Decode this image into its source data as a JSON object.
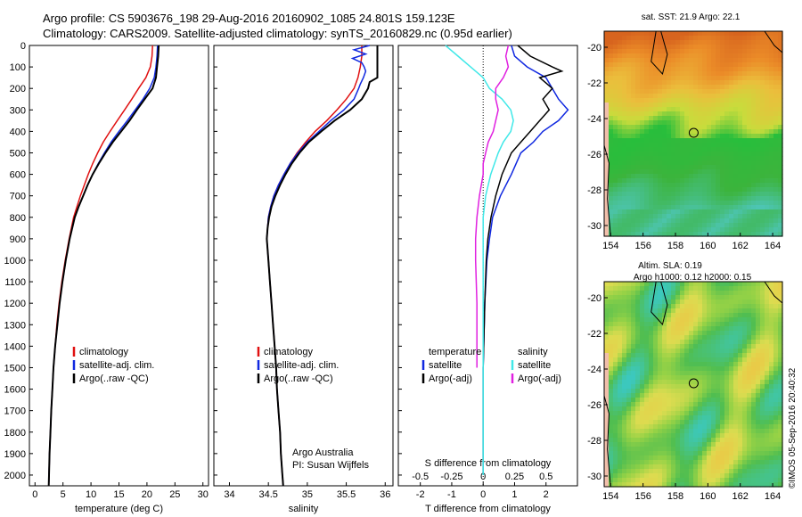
{
  "header": {
    "line1": "Argo profile: CS 5903676_198 29-Aug-2016 20160902_1085 24.801S 159.123E",
    "line2": "Climatology: CARS2009. Satellite-adjusted climatology: synTS_20160829.nc (0.95d earlier)"
  },
  "side_label": "©IMOS 05-Sep-2016 20:40:32",
  "colors": {
    "clim": "#e01010",
    "sat": "#1028e0",
    "argo": "#000000",
    "sal_sat": "#40e8e8",
    "sal_argo": "#e020e0"
  },
  "chart_data": [
    {
      "id": "temperature",
      "type": "line",
      "xlabel": "temperature (deg C)",
      "xlim": [
        -1,
        31
      ],
      "ylim": [
        2050,
        0
      ],
      "xticks": [
        "0",
        "5",
        "10",
        "15",
        "20",
        "25",
        "30"
      ],
      "yticks": [
        "0",
        "100",
        "200",
        "300",
        "400",
        "500",
        "600",
        "700",
        "800",
        "900",
        "1000",
        "1100",
        "1200",
        "1300",
        "1400",
        "1500",
        "1600",
        "1700",
        "1800",
        "1900",
        "2000"
      ],
      "legend": [
        "climatology",
        "satellite-adj. clim.",
        "Argo(..raw -QC)"
      ],
      "series": [
        {
          "name": "climatology",
          "depth": [
            0,
            50,
            100,
            150,
            200,
            250,
            300,
            350,
            400,
            450,
            500,
            550,
            600,
            650,
            700,
            750,
            800,
            900,
            1000,
            1100,
            1200,
            1300,
            1400,
            1500,
            1600,
            1700,
            1800,
            1900,
            2000,
            2050
          ],
          "values": [
            21,
            20.9,
            20.6,
            19.8,
            18.5,
            17.3,
            16,
            14.7,
            13.4,
            12.2,
            11.2,
            10.3,
            9.5,
            8.8,
            8.1,
            7.5,
            6.9,
            6.1,
            5.4,
            4.8,
            4.3,
            3.9,
            3.6,
            3.3,
            3.1,
            2.9,
            2.75,
            2.6,
            2.5,
            2.45
          ]
        },
        {
          "name": "satellite-adj. clim.",
          "depth": [
            0,
            50,
            100,
            150,
            200,
            250,
            300,
            350,
            400,
            450,
            500,
            550,
            600,
            650,
            700,
            750,
            800,
            900,
            1000,
            1100,
            1200,
            1300,
            1400,
            1500,
            1600,
            1700,
            1800,
            1900,
            2000,
            2050
          ],
          "values": [
            21.9,
            21.8,
            21.6,
            21.3,
            20.5,
            19.3,
            17.9,
            16.5,
            15,
            13.6,
            12.4,
            11.3,
            10.3,
            9.4,
            8.6,
            7.8,
            7.1,
            6.2,
            5.5,
            4.9,
            4.4,
            4,
            3.6,
            3.3,
            3.1,
            2.9,
            2.75,
            2.6,
            2.5,
            2.45
          ]
        },
        {
          "name": "Argo(..raw -QC)",
          "depth": [
            0,
            50,
            100,
            150,
            200,
            250,
            300,
            350,
            400,
            450,
            500,
            550,
            600,
            650,
            700,
            750,
            800,
            900,
            1000,
            1100,
            1200,
            1300,
            1400,
            1500,
            1600,
            1700,
            1800,
            1900,
            2000,
            2050
          ],
          "values": [
            22.1,
            22,
            21.8,
            21.6,
            21,
            19.6,
            18.2,
            16.9,
            15.4,
            13.9,
            12.6,
            11.4,
            10.3,
            9.4,
            8.6,
            7.8,
            7.1,
            6.2,
            5.5,
            4.9,
            4.4,
            4,
            3.6,
            3.3,
            3.1,
            2.9,
            2.75,
            2.6,
            2.5,
            2.45
          ]
        }
      ]
    },
    {
      "id": "salinity",
      "type": "line",
      "xlabel": "salinity",
      "xlim": [
        33.8,
        36.1
      ],
      "ylim": [
        2050,
        0
      ],
      "xticks": [
        "34",
        "34.5",
        "35",
        "35.5",
        "36"
      ],
      "legend": [
        "climatology",
        "satellite-adj. clim.",
        "Argo(..raw -QC)"
      ],
      "annotation": [
        "Argo Australia",
        "PI: Susan Wijffels"
      ],
      "series": [
        {
          "name": "climatology",
          "depth": [
            0,
            50,
            100,
            150,
            200,
            250,
            300,
            350,
            400,
            450,
            500,
            550,
            600,
            650,
            700,
            750,
            800,
            850,
            900,
            1000,
            1100,
            1200,
            1300,
            1400,
            1500,
            1600,
            1700,
            1800,
            1900,
            2000,
            2050
          ],
          "values": [
            35.7,
            35.7,
            35.68,
            35.65,
            35.6,
            35.5,
            35.38,
            35.25,
            35.1,
            34.98,
            34.87,
            34.78,
            34.7,
            34.63,
            34.57,
            34.53,
            34.5,
            34.49,
            34.48,
            34.5,
            34.52,
            34.54,
            34.56,
            34.58,
            34.6,
            34.61,
            34.63,
            34.65,
            34.66,
            34.68,
            34.69
          ]
        },
        {
          "name": "satellite-adj. clim.",
          "depth": [
            0,
            20,
            40,
            60,
            80,
            100,
            120,
            150,
            180,
            200,
            250,
            300,
            350,
            400,
            450,
            500,
            550,
            600,
            650,
            700,
            750,
            800,
            850,
            900,
            1000,
            1100,
            1200,
            1300,
            1400,
            1500,
            1600,
            1700,
            1800,
            1900,
            2000,
            2050
          ],
          "values": [
            35.8,
            35.6,
            35.75,
            35.58,
            35.7,
            35.73,
            35.75,
            35.72,
            35.68,
            35.66,
            35.6,
            35.47,
            35.3,
            35.15,
            35,
            34.88,
            34.78,
            34.7,
            34.63,
            34.57,
            34.53,
            34.5,
            34.49,
            34.48,
            34.5,
            34.52,
            34.54,
            34.56,
            34.58,
            34.6,
            34.61,
            34.63,
            34.65,
            34.66,
            34.68,
            34.69
          ]
        },
        {
          "name": "Argo(..raw -QC)",
          "depth": [
            0,
            50,
            100,
            150,
            170,
            200,
            250,
            300,
            350,
            400,
            450,
            500,
            550,
            600,
            650,
            700,
            750,
            800,
            850,
            900,
            1000,
            1100,
            1200,
            1300,
            1400,
            1500,
            1600,
            1700,
            1800,
            1900,
            2000,
            2050
          ],
          "values": [
            35.9,
            35.9,
            35.9,
            35.9,
            35.8,
            35.78,
            35.7,
            35.55,
            35.35,
            35.18,
            35.02,
            34.9,
            34.8,
            34.72,
            34.65,
            34.59,
            34.54,
            34.51,
            34.49,
            34.48,
            34.5,
            34.52,
            34.54,
            34.56,
            34.58,
            34.6,
            34.61,
            34.63,
            34.65,
            34.66,
            34.68,
            34.69
          ]
        }
      ]
    },
    {
      "id": "difference",
      "type": "line",
      "xlabel": "T difference from climatology",
      "xlabel_top": "S difference from climatology",
      "xlim": [
        -2.7,
        3.0
      ],
      "ylim": [
        2050,
        0
      ],
      "xticks": [
        "-2",
        "-1",
        "0",
        "1",
        "2"
      ],
      "xticks_top": [
        "-0.5",
        "-0.25",
        "0",
        "0.25",
        "0.5"
      ],
      "legend_t_heading": "temperature",
      "legend_s_heading": "salinity",
      "legend_t": [
        "satellite",
        "Argo(-adj)"
      ],
      "legend_s": [
        "satellite",
        "Argo(-adj)"
      ],
      "series": [
        {
          "name": "temperature satellite",
          "depth": [
            0,
            50,
            100,
            150,
            200,
            250,
            300,
            350,
            400,
            450,
            500,
            600,
            700,
            800,
            900,
            1000,
            1200,
            1500,
            2000
          ],
          "values": [
            0.9,
            1.0,
            1.4,
            2.0,
            2.2,
            2.4,
            2.7,
            2.4,
            1.9,
            1.6,
            1.2,
            0.9,
            0.55,
            0.3,
            0.2,
            0.12,
            0.05,
            0.0,
            0.0
          ]
        },
        {
          "name": "temperature Argo(-adj)",
          "depth": [
            0,
            50,
            100,
            120,
            150,
            200,
            250,
            300,
            350,
            400,
            450,
            500,
            600,
            700,
            800,
            900,
            1000,
            1200,
            1500,
            2000
          ],
          "values": [
            1.1,
            1.5,
            2.2,
            2.5,
            1.8,
            2.2,
            1.9,
            2.1,
            1.8,
            1.5,
            1.2,
            0.9,
            0.6,
            0.4,
            0.25,
            0.15,
            0.1,
            0.05,
            0.0,
            0.0
          ]
        },
        {
          "name": "salinity satellite",
          "depth": [
            0,
            50,
            100,
            150,
            200,
            250,
            300,
            350,
            400,
            450,
            500,
            600,
            700,
            800,
            900,
            1000,
            1200,
            1500,
            2000
          ],
          "values": [
            -0.3,
            -0.2,
            -0.1,
            0.0,
            0.05,
            0.15,
            0.22,
            0.24,
            0.22,
            0.16,
            0.12,
            0.06,
            0.02,
            0.0,
            0.0,
            0.0,
            0.0,
            0.0,
            0.0
          ]
        },
        {
          "name": "salinity Argo(-adj)",
          "depth": [
            0,
            50,
            100,
            150,
            200,
            250,
            300,
            350,
            400,
            450,
            500,
            550,
            600,
            700,
            800,
            900,
            1000,
            1200,
            1400,
            1500
          ],
          "values": [
            0.2,
            0.18,
            0.2,
            0.16,
            0.1,
            0.1,
            0.12,
            0.1,
            0.08,
            0.04,
            0.02,
            0.0,
            0.0,
            -0.03,
            -0.05,
            -0.06,
            -0.06,
            -0.05,
            -0.05,
            -0.05
          ]
        }
      ]
    },
    {
      "id": "sst_map",
      "type": "heatmap",
      "title": "sat. SST: 21.9 Argo: 22.1",
      "xlim": [
        153.6,
        164.6
      ],
      "ylim": [
        -30.6,
        -19.1
      ],
      "xticks": [
        "154",
        "156",
        "158",
        "160",
        "162",
        "164"
      ],
      "yticks": [
        "-20",
        "-22",
        "-24",
        "-26",
        "-28",
        "-30"
      ],
      "marker": [
        159.123,
        -24.801
      ]
    },
    {
      "id": "sla_map",
      "type": "heatmap",
      "title": "Altim. SLA: 0.19",
      "subtitle": "Argo h1000: 0.12 h2000: 0.15",
      "xlim": [
        153.6,
        164.6
      ],
      "ylim": [
        -30.6,
        -19.1
      ],
      "xticks": [
        "154",
        "156",
        "158",
        "160",
        "162",
        "164"
      ],
      "yticks": [
        "-20",
        "-22",
        "-24",
        "-26",
        "-28",
        "-30"
      ],
      "marker": [
        159.123,
        -24.801
      ]
    }
  ]
}
